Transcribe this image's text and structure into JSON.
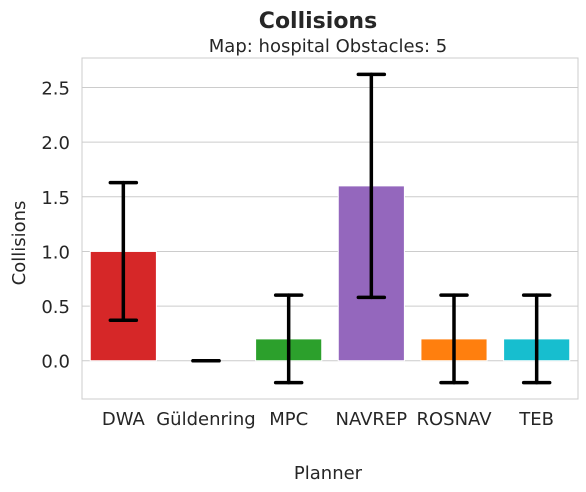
{
  "chart_data": {
    "type": "bar",
    "title": "Collisions",
    "subtitle": "Map: hospital Obstacles: 5",
    "xlabel": "Planner",
    "ylabel": "Collisions",
    "categories": [
      "DWA",
      "Güldenring",
      "MPC",
      "NAVREP",
      "ROSNAV",
      "TEB"
    ],
    "values": [
      1.0,
      0.0,
      0.2,
      1.6,
      0.2,
      0.2
    ],
    "error_low": [
      0.37,
      0.0,
      -0.2,
      0.58,
      -0.2,
      -0.2
    ],
    "error_high": [
      1.63,
      0.0,
      0.6,
      2.62,
      0.6,
      0.6
    ],
    "colors": [
      "#d62728",
      "#1f77b4",
      "#2ca02c",
      "#9467bd",
      "#ff7f0e",
      "#17becf"
    ],
    "ylim": [
      -0.35,
      2.77
    ],
    "yticks": [
      0.0,
      0.5,
      1.0,
      1.5,
      2.0,
      2.5
    ],
    "ytick_labels": [
      "0.0",
      "0.5",
      "1.0",
      "1.5",
      "2.0",
      "2.5"
    ],
    "grid": true
  }
}
